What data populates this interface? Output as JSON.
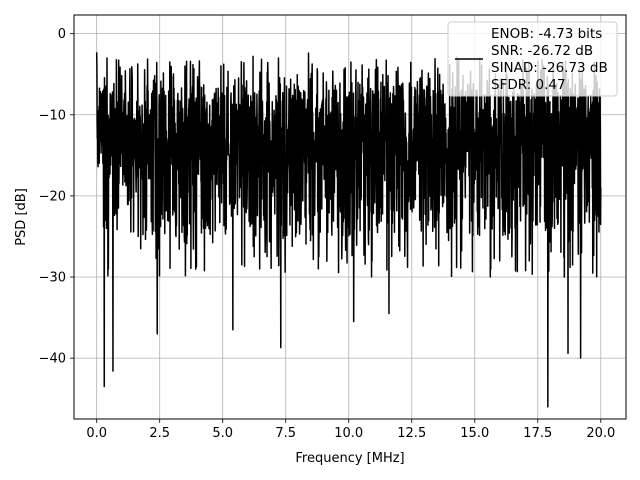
{
  "chart_data": {
    "type": "line",
    "title": "",
    "xlabel": "Frequency [MHz]",
    "ylabel": "PSD [dB]",
    "xlim": [
      -0.9,
      21.0
    ],
    "ylim": [
      -47.5,
      2.3
    ],
    "xticks": [
      0.0,
      2.5,
      5.0,
      7.5,
      10.0,
      12.5,
      15.0,
      17.5,
      20.0
    ],
    "xtick_labels": [
      "0.0",
      "2.5",
      "5.0",
      "7.5",
      "10.0",
      "12.5",
      "15.0",
      "17.5",
      "20.0"
    ],
    "yticks": [
      0,
      -10,
      -20,
      -30,
      -40
    ],
    "ytick_labels": [
      "0",
      "−10",
      "−20",
      "−30",
      "−40"
    ],
    "grid": true,
    "legend_position": "top-right",
    "series": [
      {
        "color": "#000000",
        "x_range": [
          0.0,
          20.0
        ],
        "noise_band_db": [
          -25,
          -3
        ],
        "peaks": [
          {
            "x": 0.0,
            "y": -2.3
          },
          {
            "x": 2.9,
            "y": -3.5
          },
          {
            "x": 6.2,
            "y": -2.8
          },
          {
            "x": 7.3,
            "y": 0.0
          },
          {
            "x": 8.4,
            "y": -2.4
          },
          {
            "x": 11.1,
            "y": -3.2
          },
          {
            "x": 14.3,
            "y": -2.9
          },
          {
            "x": 18.6,
            "y": -3.4
          }
        ],
        "dips": [
          {
            "x": 0.3,
            "y": -43.5
          },
          {
            "x": 0.65,
            "y": -41.6
          },
          {
            "x": 2.4,
            "y": -37.0
          },
          {
            "x": 5.4,
            "y": -36.5
          },
          {
            "x": 7.3,
            "y": -38.7
          },
          {
            "x": 10.2,
            "y": -35.5
          },
          {
            "x": 11.6,
            "y": -34.5
          },
          {
            "x": 17.9,
            "y": -46.0
          },
          {
            "x": 18.7,
            "y": -39.4
          },
          {
            "x": 19.2,
            "y": -40.0
          }
        ]
      }
    ],
    "legend": {
      "lines": [
        "ENOB: -4.73 bits",
        "SNR: -26.72 dB",
        "SINAD: -26.73 dB",
        "SFDR: 0.47"
      ]
    }
  }
}
